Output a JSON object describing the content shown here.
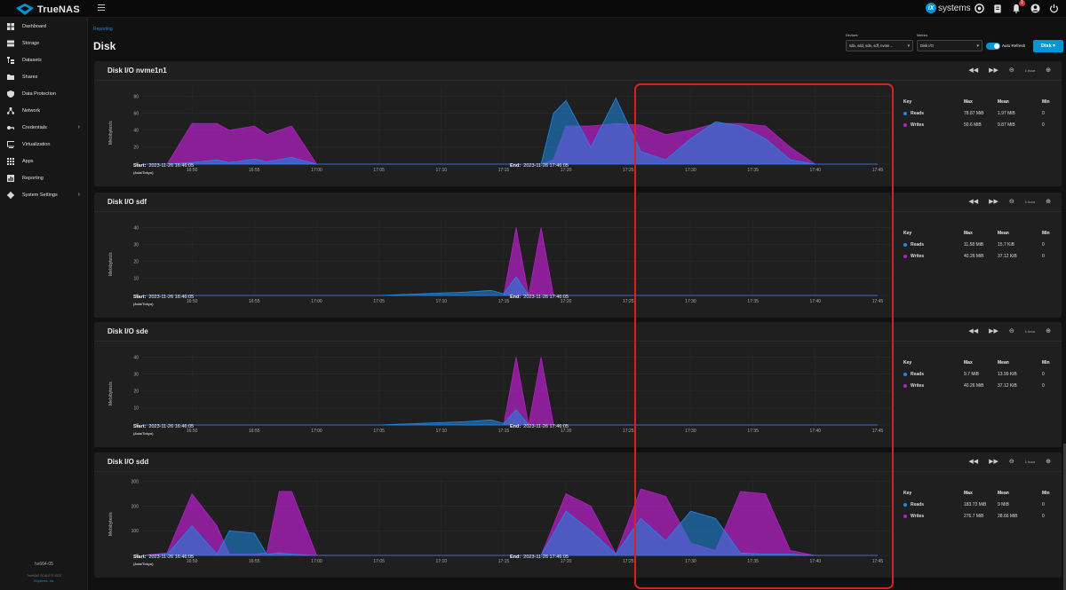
{
  "app": {
    "name": "TrueNAS",
    "edition": "SCALE",
    "vendor": "systems"
  },
  "colors": {
    "accent": "#0095d5",
    "reads": "#1e88e5",
    "writes": "#b020c0",
    "highlight": "#d42222"
  },
  "topbar_icons": [
    "truecommand-icon",
    "clipboard-icon",
    "bell-icon",
    "account-icon",
    "power-icon"
  ],
  "notifications_count": "1",
  "sidebar": {
    "items": [
      {
        "label": "Dashboard",
        "icon": "dashboard-icon"
      },
      {
        "label": "Storage",
        "icon": "storage-icon"
      },
      {
        "label": "Datasets",
        "icon": "datasets-icon"
      },
      {
        "label": "Shares",
        "icon": "shares-icon"
      },
      {
        "label": "Data Protection",
        "icon": "shield-icon"
      },
      {
        "label": "Network",
        "icon": "network-icon"
      },
      {
        "label": "Credentials",
        "icon": "key-icon"
      },
      {
        "label": "Virtualization",
        "icon": "monitor-icon"
      },
      {
        "label": "Apps",
        "icon": "apps-icon"
      },
      {
        "label": "Reporting",
        "icon": "reporting-icon"
      },
      {
        "label": "System Settings",
        "icon": "gear-icon"
      }
    ],
    "hostname": "hx664-05",
    "version": "TrueNAS SCALE ® 2023",
    "company": "iXsystems, Inc."
  },
  "page": {
    "breadcrumb": "Reporting",
    "title": "Disk",
    "devices_label": "Devices",
    "devices_value": "sda, sdd, sde, sdf, nvme…",
    "metrics_label": "Metrics",
    "metrics_value": "Disk I/O",
    "auto_refresh": "Auto Refresh",
    "disk_button": "Disk"
  },
  "x_ticks": [
    "16:50",
    "16:55",
    "17:00",
    "17:05",
    "17:10",
    "17:15",
    "17:20",
    "17:25",
    "17:30",
    "17:35",
    "17:40",
    "17:45"
  ],
  "start_label": "Start:",
  "end_label": "End:",
  "start_time": "2023-11-26 16:46:05",
  "end_time": "2023-11-26 17:46:05",
  "timezone": "(Asia/Tokyo)",
  "y_axis_label": "Mebibytes/s",
  "range_label": "1 hour",
  "legend_headers": {
    "key": "Key",
    "max": "Max",
    "mean": "Mean",
    "min": "Min"
  },
  "cards": [
    {
      "title": "Disk I/O nvme1n1",
      "y_ticks": [
        "0",
        "20",
        "40",
        "60",
        "80"
      ],
      "y_max": 90,
      "rows": [
        {
          "name": "Reads",
          "max": "78.87 MiB",
          "mean": "1.97 MiB",
          "min": "0"
        },
        {
          "name": "Writes",
          "max": "50.6 MiB",
          "mean": "9.87 MiB",
          "min": "0"
        }
      ]
    },
    {
      "title": "Disk I/O sdf",
      "y_ticks": [
        "0",
        "10",
        "20",
        "30",
        "40"
      ],
      "y_max": 45,
      "rows": [
        {
          "name": "Reads",
          "max": "11.58 MiB",
          "mean": "15.7 KiB",
          "min": "0"
        },
        {
          "name": "Writes",
          "max": "40.26 MiB",
          "mean": "37.12 KiB",
          "min": "0"
        }
      ]
    },
    {
      "title": "Disk I/O sde",
      "y_ticks": [
        "0",
        "10",
        "20",
        "30",
        "40"
      ],
      "y_max": 45,
      "rows": [
        {
          "name": "Reads",
          "max": "9.7 MiB",
          "mean": "13.99 KiB",
          "min": "0"
        },
        {
          "name": "Writes",
          "max": "40.26 MiB",
          "mean": "37.12 KiB",
          "min": "0"
        }
      ]
    },
    {
      "title": "Disk I/O sdd",
      "y_ticks": [
        "0",
        "100",
        "200",
        "300"
      ],
      "y_max": 310,
      "rows": [
        {
          "name": "Reads",
          "max": "183.73 MiB",
          "mean": "9 MiB",
          "min": "0"
        },
        {
          "name": "Writes",
          "max": "276.7 MiB",
          "mean": "28.66 MiB",
          "min": "0"
        }
      ]
    }
  ],
  "chart_data": [
    {
      "type": "area",
      "title": "Disk I/O nvme1n1",
      "ylabel": "Mebibytes/s",
      "ylim": [
        0,
        90
      ],
      "x": [
        "16:46",
        "16:48",
        "16:50",
        "16:52",
        "16:53",
        "16:55",
        "16:56",
        "16:58",
        "17:00",
        "17:05",
        "17:10",
        "17:15",
        "17:18",
        "17:19",
        "17:20",
        "17:22",
        "17:24",
        "17:26",
        "17:28",
        "17:30",
        "17:32",
        "17:34",
        "17:36",
        "17:38",
        "17:40",
        "17:45"
      ],
      "series": [
        {
          "name": "Reads",
          "values": [
            0,
            0,
            2,
            5,
            2,
            6,
            3,
            8,
            0,
            0,
            0,
            0,
            0,
            60,
            75,
            20,
            78,
            15,
            5,
            30,
            50,
            45,
            30,
            5,
            0,
            0
          ]
        },
        {
          "name": "Writes",
          "values": [
            0,
            0,
            48,
            48,
            40,
            45,
            35,
            45,
            0,
            0,
            0,
            0,
            0,
            5,
            45,
            45,
            48,
            46,
            35,
            40,
            48,
            48,
            45,
            20,
            0,
            0
          ]
        }
      ]
    },
    {
      "type": "area",
      "title": "Disk I/O sdf",
      "ylabel": "Mebibytes/s",
      "ylim": [
        0,
        45
      ],
      "x": [
        "16:46",
        "17:05",
        "17:12",
        "17:14",
        "17:15",
        "17:16",
        "17:17",
        "17:18",
        "17:19",
        "17:45"
      ],
      "series": [
        {
          "name": "Reads",
          "values": [
            0,
            0,
            2,
            3,
            1,
            11,
            0,
            0,
            0,
            0
          ]
        },
        {
          "name": "Writes",
          "values": [
            0,
            0,
            0,
            0,
            0,
            40,
            0,
            40,
            0,
            0
          ]
        }
      ]
    },
    {
      "type": "area",
      "title": "Disk I/O sde",
      "ylabel": "Mebibytes/s",
      "ylim": [
        0,
        45
      ],
      "x": [
        "16:46",
        "17:05",
        "17:12",
        "17:14",
        "17:15",
        "17:16",
        "17:17",
        "17:18",
        "17:19",
        "17:45"
      ],
      "series": [
        {
          "name": "Reads",
          "values": [
            0,
            0,
            2,
            3,
            1,
            9,
            0,
            0,
            0,
            0
          ]
        },
        {
          "name": "Writes",
          "values": [
            0,
            0,
            0,
            0,
            0,
            40,
            0,
            40,
            0,
            0
          ]
        }
      ]
    },
    {
      "type": "area",
      "title": "Disk I/O sdd",
      "ylabel": "Mebibytes/s",
      "ylim": [
        0,
        310
      ],
      "x": [
        "16:46",
        "16:48",
        "16:50",
        "16:52",
        "16:53",
        "16:55",
        "16:56",
        "16:57",
        "16:58",
        "17:00",
        "17:05",
        "17:10",
        "17:18",
        "17:20",
        "17:22",
        "17:24",
        "17:26",
        "17:28",
        "17:30",
        "17:32",
        "17:34",
        "17:36",
        "17:38",
        "17:40",
        "17:45"
      ],
      "series": [
        {
          "name": "Reads",
          "values": [
            0,
            5,
            120,
            5,
            100,
            90,
            5,
            10,
            5,
            0,
            0,
            0,
            0,
            180,
            100,
            5,
            150,
            60,
            180,
            150,
            10,
            5,
            5,
            0,
            0
          ]
        },
        {
          "name": "Writes",
          "values": [
            0,
            10,
            250,
            120,
            5,
            5,
            10,
            260,
            260,
            0,
            0,
            0,
            0,
            250,
            200,
            5,
            270,
            240,
            50,
            20,
            260,
            250,
            20,
            0,
            0
          ]
        }
      ]
    }
  ]
}
